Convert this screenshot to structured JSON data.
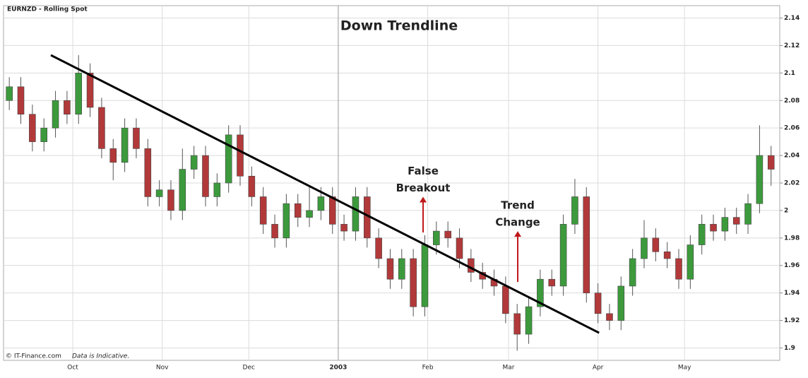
{
  "chart_data": {
    "type": "candlestick",
    "title": "Down Trendline",
    "subtitle": "EURNZD - Rolling Spot",
    "source": "© IT-Finance.com",
    "note": "Data is Indicative.",
    "up_color": "#3c9a3c",
    "down_color": "#b2393a",
    "grid": true,
    "xlim": [
      -24,
      245
    ],
    "xticks": [
      {
        "value": 0,
        "label": "Oct"
      },
      {
        "value": 31,
        "label": "Nov"
      },
      {
        "value": 61,
        "label": "Dec"
      },
      {
        "value": 92,
        "label": "2003"
      },
      {
        "value": 123,
        "label": "Feb"
      },
      {
        "value": 151,
        "label": "Mar"
      },
      {
        "value": 182,
        "label": "Apr"
      },
      {
        "value": 212,
        "label": "May"
      }
    ],
    "ylim": [
      1.891,
      2.149
    ],
    "yticks": [
      1.9,
      1.92,
      1.94,
      1.96,
      1.98,
      2,
      2.02,
      2.04,
      2.06,
      2.08,
      2.1,
      2.12,
      2.14
    ],
    "x": [
      -22,
      -18,
      -14,
      -10,
      -6,
      -2,
      2,
      6,
      10,
      14,
      18,
      22,
      26,
      30,
      34,
      38,
      42,
      46,
      50,
      54,
      58,
      62,
      66,
      70,
      74,
      78,
      82,
      86,
      90,
      94,
      98,
      102,
      106,
      110,
      114,
      118,
      122,
      126,
      130,
      134,
      138,
      142,
      146,
      150,
      154,
      158,
      162,
      166,
      170,
      174,
      178,
      182,
      186,
      190,
      194,
      198,
      202,
      206,
      210,
      214,
      218,
      222,
      226,
      230,
      234,
      238,
      242
    ],
    "open": [
      2.08,
      2.09,
      2.07,
      2.05,
      2.06,
      2.08,
      2.07,
      2.1,
      2.075,
      2.045,
      2.035,
      2.06,
      2.045,
      2.01,
      2.015,
      2.0,
      2.03,
      2.04,
      2.01,
      2.02,
      2.055,
      2.025,
      2.01,
      1.99,
      1.98,
      2.005,
      1.995,
      2.0,
      2.01,
      1.99,
      1.985,
      2.01,
      1.98,
      1.965,
      1.95,
      1.965,
      1.93,
      1.975,
      1.985,
      1.98,
      1.965,
      1.955,
      1.95,
      1.945,
      1.925,
      1.91,
      1.93,
      1.95,
      1.945,
      1.99,
      2.01,
      1.94,
      1.925,
      1.92,
      1.945,
      1.965,
      1.98,
      1.97,
      1.965,
      1.95,
      1.975,
      1.99,
      1.985,
      1.995,
      1.99,
      2.005,
      2.04
    ],
    "high": [
      2.097,
      2.097,
      2.077,
      2.067,
      2.087,
      2.087,
      2.113,
      2.107,
      2.082,
      2.052,
      2.067,
      2.067,
      2.052,
      2.022,
      2.022,
      2.045,
      2.047,
      2.047,
      2.027,
      2.062,
      2.062,
      2.032,
      2.017,
      1.997,
      2.012,
      2.012,
      2.017,
      2.017,
      2.017,
      1.997,
      2.017,
      2.017,
      1.987,
      1.972,
      1.972,
      1.972,
      1.982,
      1.992,
      1.992,
      1.987,
      1.972,
      1.962,
      1.957,
      1.952,
      1.932,
      1.937,
      1.957,
      1.957,
      1.997,
      2.023,
      2.017,
      1.947,
      1.932,
      1.952,
      1.972,
      1.993,
      1.987,
      1.977,
      1.972,
      1.982,
      1.997,
      1.997,
      2.002,
      2.002,
      2.012,
      2.062,
      2.047
    ],
    "low": [
      2.073,
      2.063,
      2.043,
      2.043,
      2.053,
      2.063,
      2.063,
      2.068,
      2.038,
      2.022,
      2.028,
      2.038,
      2.003,
      2.003,
      1.993,
      1.993,
      2.023,
      2.003,
      2.003,
      2.013,
      2.018,
      2.003,
      1.983,
      1.973,
      1.973,
      1.988,
      1.988,
      1.993,
      1.983,
      1.978,
      1.978,
      1.973,
      1.958,
      1.943,
      1.943,
      1.923,
      1.923,
      1.968,
      1.973,
      1.958,
      1.948,
      1.943,
      1.938,
      1.918,
      1.898,
      1.903,
      1.923,
      1.938,
      1.938,
      1.983,
      1.933,
      1.918,
      1.913,
      1.913,
      1.938,
      1.958,
      1.963,
      1.958,
      1.943,
      1.943,
      1.968,
      1.978,
      1.978,
      1.983,
      1.983,
      1.998,
      2.018
    ],
    "close": [
      2.09,
      2.07,
      2.05,
      2.06,
      2.08,
      2.07,
      2.1,
      2.075,
      2.045,
      2.035,
      2.06,
      2.045,
      2.01,
      2.015,
      2.0,
      2.03,
      2.04,
      2.01,
      2.02,
      2.055,
      2.025,
      2.01,
      1.99,
      1.98,
      2.005,
      1.995,
      2.0,
      2.01,
      1.99,
      1.985,
      2.01,
      1.98,
      1.965,
      1.95,
      1.965,
      1.93,
      1.975,
      1.985,
      1.98,
      1.965,
      1.955,
      1.95,
      1.945,
      1.925,
      1.91,
      1.93,
      1.95,
      1.945,
      1.99,
      2.01,
      1.94,
      1.925,
      1.92,
      1.945,
      1.965,
      1.98,
      1.97,
      1.965,
      1.95,
      1.975,
      1.99,
      1.985,
      1.995,
      1.99,
      2.005,
      2.04,
      2.03
    ],
    "trendline": {
      "x": [
        -7.6,
        182.4
      ],
      "y": [
        2.113,
        1.911
      ]
    },
    "annotations": [
      {
        "lines": [
          "False",
          "Breakout"
        ],
        "x": 121.4,
        "y": [
          1.984,
          2.01
        ]
      },
      {
        "lines": [
          "Trend",
          "Change"
        ],
        "x": 154.2,
        "y": [
          1.948,
          1.985
        ]
      }
    ]
  }
}
